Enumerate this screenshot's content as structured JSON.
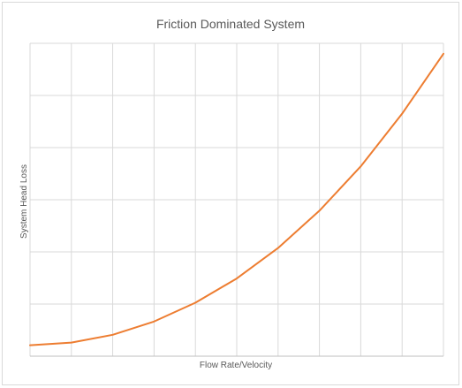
{
  "chart_data": {
    "type": "line",
    "title": "Friction Dominated System",
    "xlabel": "Flow Rate/Velocity",
    "ylabel": "System Head Loss",
    "x": [
      0,
      1,
      2,
      3,
      4,
      5,
      6,
      7,
      8,
      9,
      10
    ],
    "series": [
      {
        "values": [
          0.42,
          0.52,
          0.82,
          1.33,
          2.05,
          2.98,
          4.15,
          5.58,
          7.28,
          9.3,
          11.6
        ]
      }
    ],
    "xlim": [
      0,
      10
    ],
    "ylim": [
      0,
      12
    ],
    "grid": true,
    "legend": "none",
    "line_color": "#ed7d31",
    "grid_color": "#d9d9d9"
  }
}
